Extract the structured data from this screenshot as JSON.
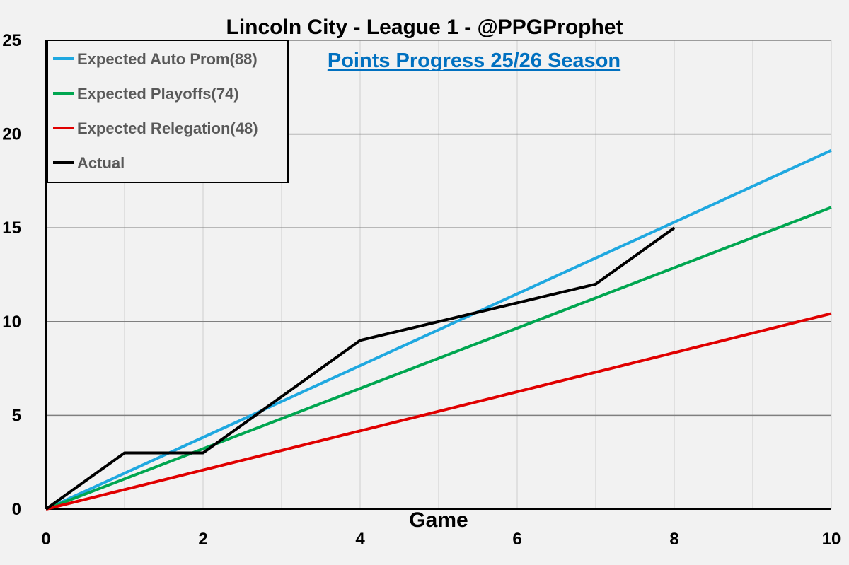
{
  "chart_data": {
    "type": "line",
    "title": "Lincoln City - League 1 - @PPGProphet",
    "subtitle": "Points Progress 25/26 Season",
    "xlabel": "Game",
    "ylabel": "",
    "xlim": [
      0,
      10
    ],
    "ylim": [
      0,
      25
    ],
    "x_ticks": [
      0,
      2,
      4,
      6,
      8,
      10
    ],
    "y_ticks": [
      0,
      5,
      10,
      15,
      20,
      25
    ],
    "x_gridlines": [
      0,
      1,
      2,
      3,
      4,
      5,
      6,
      7,
      8,
      9,
      10
    ],
    "grid": true,
    "legend_position": "top-left",
    "series": [
      {
        "name": "Expected Auto Prom(88)",
        "color": "#1fa8e0",
        "x": [
          0,
          10
        ],
        "y": [
          0,
          19.13
        ]
      },
      {
        "name": "Expected Playoffs(74)",
        "color": "#00a650",
        "x": [
          0,
          10
        ],
        "y": [
          0,
          16.09
        ]
      },
      {
        "name": "Expected Relegation(48)",
        "color": "#e00000",
        "x": [
          0,
          10
        ],
        "y": [
          0,
          10.43
        ]
      },
      {
        "name": "Actual",
        "color": "#000000",
        "x": [
          0,
          1,
          2,
          4,
          5,
          7,
          8
        ],
        "y": [
          0,
          3,
          3,
          9,
          10,
          12,
          15
        ]
      }
    ]
  }
}
